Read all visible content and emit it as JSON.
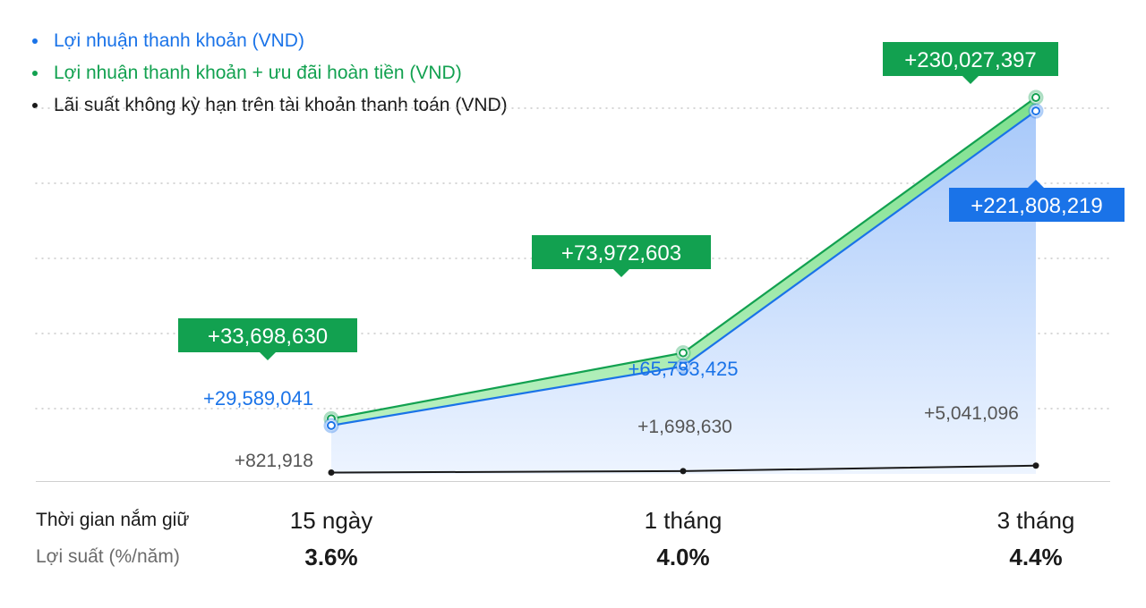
{
  "chart_data": {
    "type": "area",
    "categories": [
      "15 ngày",
      "1 tháng",
      "3 tháng"
    ],
    "ylim": [
      0,
      250000000
    ],
    "grid": true,
    "legend_position": "top-left",
    "series": [
      {
        "name": "Lợi nhuận thanh khoản (VND)",
        "values": [
          29589041,
          65753425,
          221808219
        ],
        "labels": [
          "+29,589,041",
          "+65,753,425",
          "+221,808,219"
        ],
        "color": "#1a73e8"
      },
      {
        "name": "Lợi nhuận thanh khoản + ưu đãi hoàn tiền (VND)",
        "values": [
          33698630,
          73972603,
          230027397
        ],
        "labels": [
          "+33,698,630",
          "+73,972,603",
          "+230,027,397"
        ],
        "color": "#12a150"
      },
      {
        "name": "Lãi suất không kỳ hạn trên tài khoản thanh toán (VND)",
        "values": [
          821918,
          1698630,
          5041096
        ],
        "labels": [
          "+821,918",
          "+1,698,630",
          "+5,041,096"
        ],
        "color": "#1a1a1a"
      }
    ]
  },
  "table": {
    "period_label": "Thời gian nắm giữ",
    "rate_label": "Lợi suất (%/năm)",
    "periods": [
      "15 ngày",
      "1 tháng",
      "3 tháng"
    ],
    "rates": [
      "3.6%",
      "4.0%",
      "4.4%"
    ]
  }
}
